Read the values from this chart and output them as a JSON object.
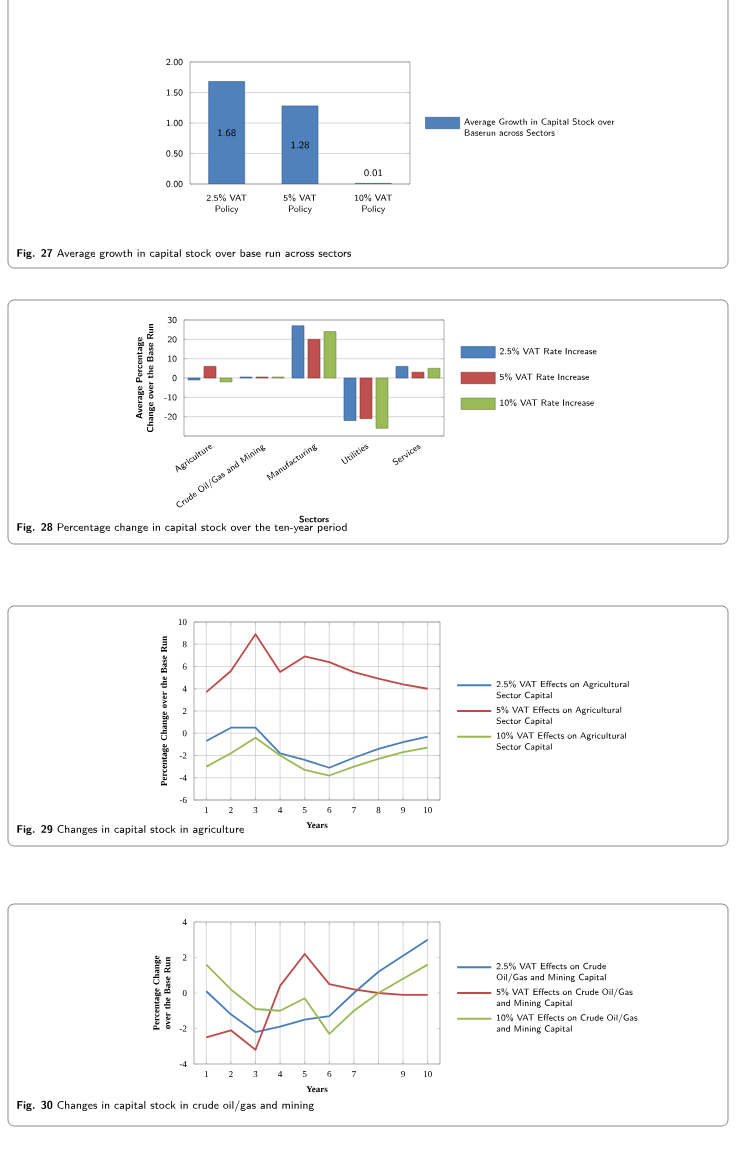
{
  "chart_data": [
    {
      "type": "bar",
      "categories": [
        "2.5% VAT Policy",
        "5% VAT Policy",
        "10% VAT Policy"
      ],
      "series": [
        {
          "name": "Average Growth in Capital Stock over Baserun across Sectors",
          "color": "#4f81bd",
          "values": [
            1.68,
            1.28,
            0.01
          ],
          "value_labels": [
            "1.68",
            "1.28",
            "0.01"
          ]
        }
      ],
      "ylim": [
        0,
        2
      ],
      "yticks": [
        {
          "value": 0,
          "label": "0.00"
        },
        {
          "value": 0.5,
          "label": "0.50"
        },
        {
          "value": 1,
          "label": "1.00"
        },
        {
          "value": 1.5,
          "label": "1.50"
        },
        {
          "value": 2,
          "label": "2.00"
        }
      ],
      "grid": "y",
      "legend": "right",
      "annotations": [
        "**Fig. 27** Average growth in capital stock over base run across sectors"
      ]
    },
    {
      "type": "bar",
      "categories": [
        "Agriculture",
        "Crude Oil/Gas and Mining",
        "Manufacturing",
        "Utilities",
        "Services"
      ],
      "series": [
        {
          "name": "2.5% VAT Rate Increase",
          "color": "#4f81bd",
          "values": [
            -1,
            0.5,
            27,
            -22,
            6
          ]
        },
        {
          "name": "5% VAT Rate Increase",
          "color": "#c0504d",
          "values": [
            6,
            0.5,
            20,
            -21,
            3
          ]
        },
        {
          "name": "10% VAT Rate Increase",
          "color": "#9bbb59",
          "values": [
            -2,
            0.5,
            24,
            -26,
            5
          ]
        }
      ],
      "ylim": [
        -30,
        30
      ],
      "yticks": [
        {
          "value": -30,
          "label": null
        },
        -20,
        -10,
        0,
        10,
        20,
        30
      ],
      "xlabel": "Sectors",
      "ylabel": "Average Percentage Change over the Base Run",
      "grid": "y",
      "legend": "right",
      "annotations": [
        "**Fig. 28** Percentage change in capital stock over the ten-year period"
      ]
    },
    {
      "type": "line",
      "categories": [
        "1",
        "2",
        "3",
        "4",
        "5",
        "6",
        "7",
        "8",
        "9",
        "10"
      ],
      "series": [
        {
          "name": "2.5% VAT Effects on Agricultural Sector Capital",
          "color": "#4a7ebb",
          "values": [
            -0.7,
            0.5,
            0.5,
            -1.8,
            -2.4,
            -3.1,
            -2.2,
            -1.4,
            -0.8,
            -0.3
          ]
        },
        {
          "name": "5% VAT Effects on Agricultural Sector Capital",
          "color": "#be4b48",
          "values": [
            3.7,
            5.6,
            8.9,
            5.5,
            6.9,
            6.4,
            5.5,
            4.9,
            4.4,
            4.0
          ]
        },
        {
          "name": "10% VAT Effects on Agricultural Sector Capital",
          "color": "#98b954",
          "values": [
            -3.0,
            -1.8,
            -0.4,
            -2.0,
            -3.3,
            -3.8,
            -3.0,
            -2.3,
            -1.7,
            -1.3
          ]
        }
      ],
      "ylim": [
        -6,
        10
      ],
      "yticks": [
        -6,
        -4,
        -2,
        0,
        2,
        4,
        6,
        8,
        10
      ],
      "xlabel": "Years",
      "ylabel": "Percentage Change over the Base Run",
      "grid": true,
      "legend": "right",
      "annotations": [
        "**Fig. 29** Changes in capital stock in agriculture"
      ]
    },
    {
      "type": "line",
      "categories": [
        "1",
        "2",
        "3",
        "4",
        "5",
        "6",
        "7",
        null,
        "9",
        "10"
      ],
      "series": [
        {
          "name": "2.5% VAT Effects on Crude Oil/Gas and Mining Capital",
          "color": "#4a7ebb",
          "values": [
            0.1,
            -1.2,
            -2.2,
            -1.9,
            -1.5,
            -1.3,
            0.0,
            1.2,
            2.1,
            3.0
          ]
        },
        {
          "name": "5% VAT Effects on Crude Oil/Gas and Mining Capital",
          "color": "#be4b48",
          "values": [
            -2.5,
            -2.1,
            -3.2,
            0.4,
            2.2,
            0.5,
            0.2,
            0.0,
            -0.1,
            -0.1
          ]
        },
        {
          "name": "10% VAT Effects on Crude Oil/Gas and Mining Capital",
          "color": "#98b954",
          "values": [
            1.6,
            0.2,
            -0.9,
            -1.0,
            -0.3,
            -2.3,
            -1.0,
            0.0,
            0.8,
            1.6
          ]
        }
      ],
      "ylim": [
        -4,
        4
      ],
      "yticks": [
        -4,
        -2,
        0,
        2,
        4
      ],
      "xlabel": "Years",
      "ylabel": "Percentage Change over the Base Run",
      "grid": "x",
      "legend": "right",
      "annotations": [
        "**Fig. 30** Changes in capital stock in crude oil/gas and mining"
      ]
    }
  ]
}
